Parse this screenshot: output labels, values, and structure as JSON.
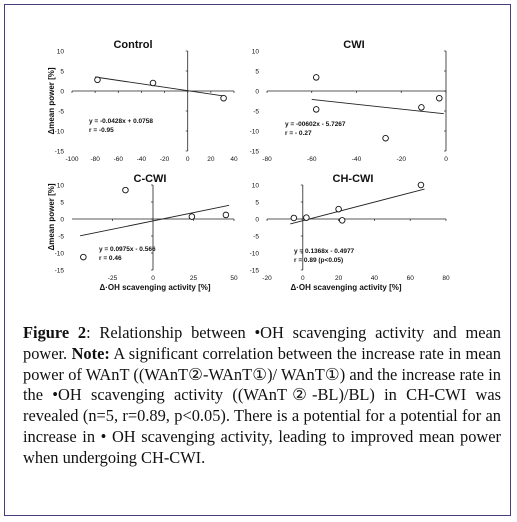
{
  "figure": {
    "y_label": "Δmean power [%]",
    "x_label": "Δ·OH scavenging activity [%]"
  },
  "chart_data": [
    {
      "type": "scatter",
      "title": "Control",
      "xlim": [
        -100,
        40
      ],
      "ylim": [
        -15,
        10
      ],
      "xticks": [
        -100,
        -80,
        -60,
        -40,
        -20,
        0,
        20,
        40
      ],
      "yticks": [
        10,
        5,
        0,
        -5,
        -10,
        -15
      ],
      "x": [
        -78,
        -30,
        31
      ],
      "y": [
        2.8,
        2.0,
        -1.8
      ],
      "fit": {
        "slope": -0.0428,
        "intercept": 0.0758
      },
      "equation": "y = -0.0428x + 0.0758",
      "r_text": "r = -0.95"
    },
    {
      "type": "scatter",
      "title": "CWI",
      "xlim": [
        -80,
        0
      ],
      "ylim": [
        -15,
        10
      ],
      "xticks": [
        -80,
        -60,
        -40,
        -20,
        0
      ],
      "yticks": [
        10,
        5,
        0,
        -5,
        -10,
        -15
      ],
      "x": [
        -58,
        -58,
        -27,
        -11,
        -3
      ],
      "y": [
        3.4,
        -4.6,
        -11.8,
        -4.1,
        -1.8
      ],
      "fit": {
        "slope": -0.0602,
        "intercept": -5.7267
      },
      "equation": "y = -00602x - 5.7267",
      "r_text": "r = - 0.27"
    },
    {
      "type": "scatter",
      "title": "C-CWI",
      "xlim": [
        -50,
        50
      ],
      "ylim": [
        -15,
        10
      ],
      "xticks": [
        -25,
        0,
        25,
        50
      ],
      "yticks": [
        10,
        5,
        0,
        -5,
        -10,
        -15
      ],
      "x": [
        -43,
        -17,
        24,
        45
      ],
      "y": [
        -11.2,
        8.5,
        0.7,
        1.2
      ],
      "fit": {
        "slope": 0.0975,
        "intercept": -0.566
      },
      "equation": "y = 0.0975x - 0.566",
      "r_text": "r = 0.46"
    },
    {
      "type": "scatter",
      "title": "CH-CWI",
      "xlim": [
        -20,
        80
      ],
      "ylim": [
        -15,
        10
      ],
      "xticks": [
        -20,
        0,
        20,
        40,
        60,
        80
      ],
      "yticks": [
        10,
        5,
        0,
        -5,
        -10,
        -15
      ],
      "x": [
        -5,
        2,
        20,
        22,
        66
      ],
      "y": [
        0.3,
        0.4,
        2.9,
        -0.4,
        10.0
      ],
      "fit": {
        "slope": 0.1368,
        "intercept": -0.4977
      },
      "equation": "y = 0.1368x - 0.4977",
      "r_text": "r = 0.89 (p<0.05)"
    }
  ],
  "caption": {
    "label": "Figure 2",
    "text1": ": Relationship between •OH scavenging activity and mean power. ",
    "note_label": "Note:",
    "text2": " A significant correlation between the increase rate in mean power of WAnT ((WAnT②-WAnT①)/ WAnT①) and the increase rate in the •OH scavenging activity ((WAnT②-BL)/BL) in CH-CWI was revealed (n=5, r=0.89, p<0.05). There is a potential for a potential for an increase in • OH scavenging activity, leading to improved mean power when undergoing CH-CWI."
  }
}
